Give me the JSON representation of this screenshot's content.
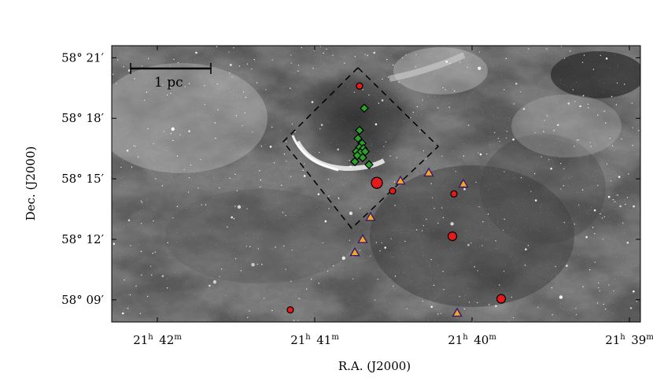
{
  "chart_data": {
    "type": "scatter",
    "xlabel": "R.A. (J2000)",
    "ylabel": "Dec. (J2000)",
    "xlim": [
      20.0,
      11.0
    ],
    "ylim": [
      -8.3,
      3.4
    ],
    "xlim_note": "arc-min offsets from 21h39m RA reference (left edge = 21h41m20s est.)",
    "x_ticks": [
      {
        "value": 17.35,
        "main": "21",
        "hunit": "h",
        "minutes": "42",
        "munit": "m"
      },
      {
        "value": 15.0,
        "main": "21",
        "hunit": "h",
        "minutes": "41",
        "munit": "m"
      },
      {
        "value": 12.65,
        "main": "21",
        "hunit": "h",
        "minutes": "40",
        "munit": "m"
      },
      {
        "value": 10.3,
        "main": "21",
        "hunit": "h",
        "minutes": "39",
        "munit": "m"
      }
    ],
    "y_ticks": [
      {
        "value": 21,
        "label": "58°  21′"
      },
      {
        "value": 18,
        "label": "58°  18′"
      },
      {
        "value": 15,
        "label": "58°  15′"
      },
      {
        "value": 12,
        "label": "58°  12′"
      },
      {
        "value": 9,
        "label": "58°  09′"
      }
    ],
    "scale_bar": {
      "label": "1 pc"
    },
    "field": {
      "dec_top": 21.6,
      "dec_bottom": 7.9,
      "ra_left": 16.6,
      "ra_right": 29.2
    },
    "series": [
      {
        "marker": "circle",
        "color": "#e41a1c",
        "points": [
          {
            "x": 0.0,
            "y": 19.6,
            "size": "small"
          },
          {
            "x": 0.55,
            "y": 14.8,
            "size": "large"
          },
          {
            "x": 1.05,
            "y": 14.4,
            "size": "small"
          },
          {
            "x": 3.0,
            "y": 14.25,
            "size": "small"
          },
          {
            "x": 2.95,
            "y": 12.15,
            "size": "medium"
          },
          {
            "x": 4.5,
            "y": 9.05,
            "size": "medium"
          },
          {
            "x": -2.2,
            "y": 8.5,
            "size": "small"
          }
        ]
      },
      {
        "marker": "triangle",
        "color": "#f5a623",
        "points": [
          {
            "x": 1.3,
            "y": 14.9
          },
          {
            "x": 2.2,
            "y": 15.3
          },
          {
            "x": 3.3,
            "y": 14.75
          },
          {
            "x": 0.35,
            "y": 13.1
          },
          {
            "x": 0.1,
            "y": 12.0
          },
          {
            "x": -0.15,
            "y": 11.35
          },
          {
            "x": 3.1,
            "y": 8.35
          }
        ]
      },
      {
        "marker": "diamond",
        "color": "#2ca02c",
        "points": [
          {
            "x": 0.15,
            "y": 18.5
          },
          {
            "x": 0.0,
            "y": 17.4
          },
          {
            "x": -0.05,
            "y": 17.0
          },
          {
            "x": 0.08,
            "y": 16.75
          },
          {
            "x": 0.0,
            "y": 16.55
          },
          {
            "x": 0.12,
            "y": 16.5
          },
          {
            "x": -0.1,
            "y": 16.35
          },
          {
            "x": 0.03,
            "y": 16.3
          },
          {
            "x": 0.18,
            "y": 16.35
          },
          {
            "x": -0.07,
            "y": 16.15
          },
          {
            "x": 0.1,
            "y": 16.05
          },
          {
            "x": -0.15,
            "y": 15.85
          },
          {
            "x": 0.3,
            "y": 15.7
          }
        ]
      }
    ]
  }
}
